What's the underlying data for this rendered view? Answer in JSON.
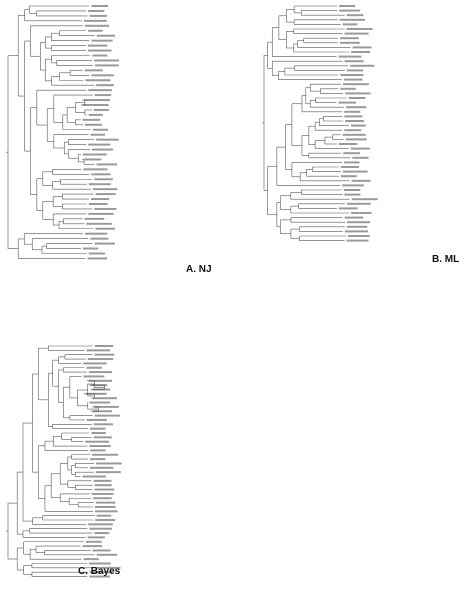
{
  "panels": [
    {
      "label": "A. NJ"
    },
    {
      "label": "B. ML"
    },
    {
      "label": "C. Bayes"
    }
  ]
}
